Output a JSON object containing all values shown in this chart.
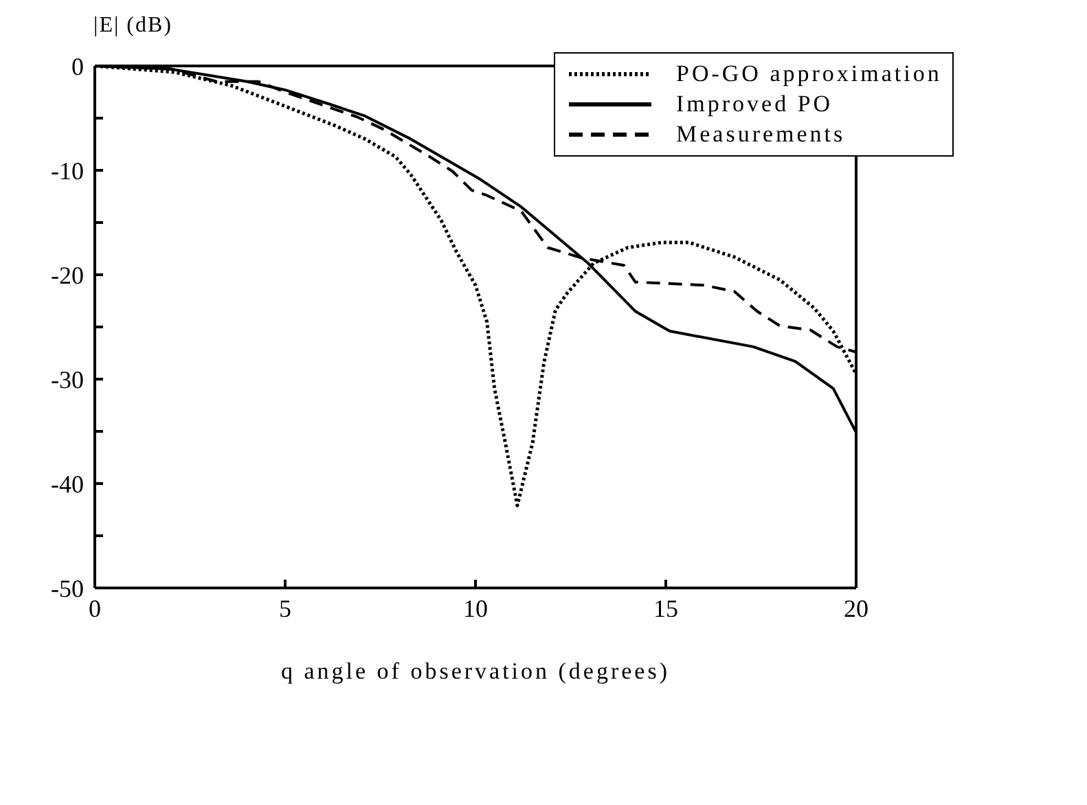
{
  "chart_data": {
    "type": "line",
    "ylabel": "|E| (dB)",
    "xlabel": "q   angle of observation (degrees)",
    "xlim": [
      0,
      20
    ],
    "xticks": [
      0,
      5,
      10,
      15,
      20
    ],
    "ylim": [
      -50,
      0
    ],
    "yticks": [
      0,
      {
        "value": -5,
        "label": null
      },
      -10,
      {
        "value": -15,
        "label": null
      },
      -20,
      {
        "value": -25,
        "label": null
      },
      -30,
      {
        "value": -35,
        "label": null
      },
      -40,
      {
        "value": -45,
        "label": null
      },
      -50
    ],
    "legend": "top right",
    "marker": "none",
    "series": [
      {
        "name": "PO-GO approximation",
        "color": "#000000",
        "line_style": "dotted",
        "x": [
          0,
          2.1,
          3.6,
          5.1,
          6.3,
          7.1,
          7.9,
          8.3,
          9.1,
          9.5,
          10.0,
          10.3,
          10.5,
          10.8,
          11.1,
          11.5,
          11.8,
          12.1,
          12.4,
          13.1,
          14.0,
          14.9,
          15.6,
          16.8,
          18.0,
          18.9,
          19.4,
          20
        ],
        "values": [
          0,
          -0.6,
          -1.9,
          -4,
          -5.7,
          -7,
          -8.7,
          -10.4,
          -14.8,
          -17.8,
          -21,
          -24.5,
          -30.9,
          -36.4,
          -42.1,
          -36.1,
          -28.4,
          -23.4,
          -21.8,
          -18.9,
          -17.4,
          -16.9,
          -16.9,
          -18.3,
          -20.5,
          -23.2,
          -25.4,
          -29.5
        ]
      },
      {
        "name": "Improved PO",
        "color": "#000000",
        "line_style": "solid",
        "x": [
          0,
          2,
          4,
          5,
          6.2,
          7.1,
          8.3,
          10.1,
          11.2,
          12.96,
          14.2,
          15.1,
          17.3,
          18.4,
          19.4,
          20
        ],
        "values": [
          0,
          -0.3,
          -1.5,
          -2.3,
          -3.7,
          -4.8,
          -7,
          -10.8,
          -13.5,
          -18.9,
          -23.5,
          -25.4,
          -26.9,
          -28.3,
          -30.9,
          -35.1
        ]
      },
      {
        "name": "Measurements",
        "color": "#000000",
        "line_style": "dashed",
        "x": [
          0,
          2,
          3.2,
          4.3,
          5,
          6.9,
          7.6,
          8.8,
          9.4,
          9.9,
          10.3,
          11.2,
          11.9,
          12.8,
          13.9,
          14.2,
          16.0,
          16.8,
          17.4,
          18.0,
          18.8,
          19.5,
          20
        ],
        "values": [
          0,
          -0.3,
          -1.5,
          -1.5,
          -2.5,
          -4.9,
          -6.1,
          -8.7,
          -10.1,
          -11.9,
          -12.4,
          -13.9,
          -17.4,
          -18.4,
          -19.1,
          -20.7,
          -21,
          -21.6,
          -23.5,
          -24.9,
          -25.3,
          -26.9,
          -27.4
        ]
      }
    ]
  }
}
